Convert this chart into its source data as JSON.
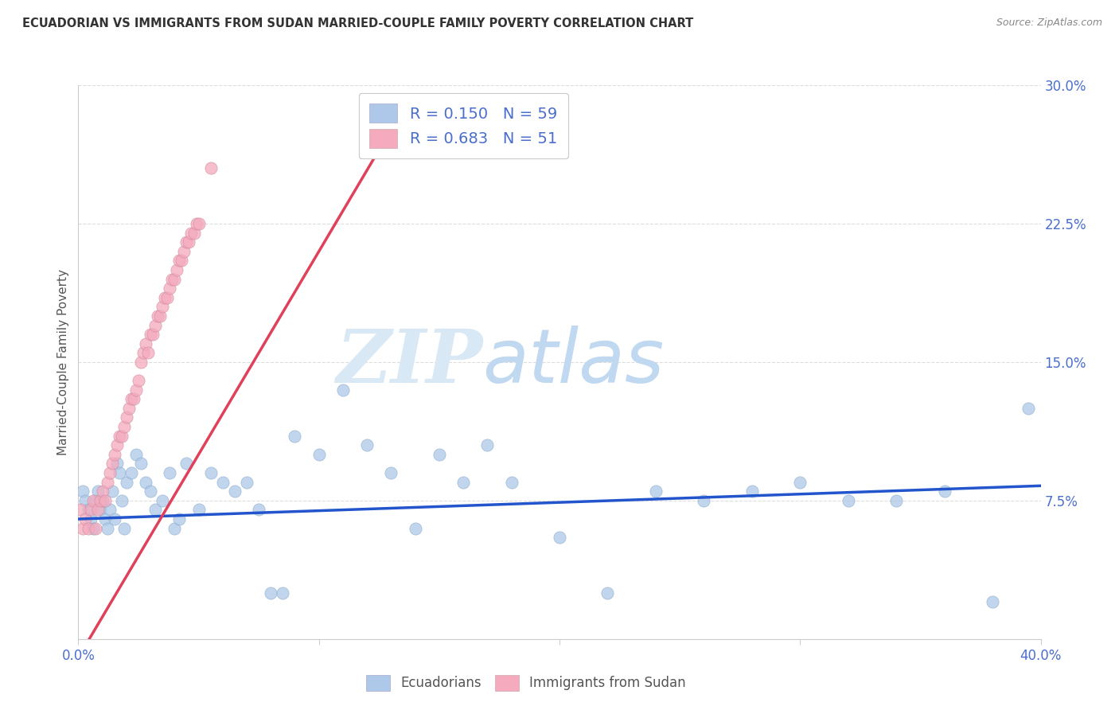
{
  "title": "ECUADORIAN VS IMMIGRANTS FROM SUDAN MARRIED-COUPLE FAMILY POVERTY CORRELATION CHART",
  "source": "Source: ZipAtlas.com",
  "ylabel": "Married-Couple Family Poverty",
  "x_min": 0.0,
  "x_max": 0.4,
  "y_min": 0.0,
  "y_max": 0.3,
  "R_blue": 0.15,
  "N_blue": 59,
  "R_pink": 0.683,
  "N_pink": 51,
  "color_blue": "#adc8e8",
  "color_pink": "#f5aabe",
  "line_color_blue": "#2255cc",
  "line_color_pink": "#e0405a",
  "watermark_zip": "ZIP",
  "watermark_atlas": "atlas",
  "watermark_color_zip": "#d8e8f4",
  "watermark_color_atlas": "#c0d8f0",
  "blue_intercept": 0.065,
  "blue_slope": 0.045,
  "pink_intercept": -0.01,
  "pink_slope": 2.2,
  "ecuadorians_x": [
    0.002,
    0.003,
    0.004,
    0.005,
    0.006,
    0.007,
    0.008,
    0.009,
    0.01,
    0.011,
    0.012,
    0.013,
    0.014,
    0.015,
    0.016,
    0.017,
    0.018,
    0.019,
    0.02,
    0.022,
    0.024,
    0.026,
    0.028,
    0.03,
    0.032,
    0.035,
    0.038,
    0.04,
    0.042,
    0.045,
    0.05,
    0.055,
    0.06,
    0.065,
    0.07,
    0.075,
    0.08,
    0.085,
    0.09,
    0.1,
    0.11,
    0.12,
    0.13,
    0.14,
    0.15,
    0.16,
    0.17,
    0.18,
    0.2,
    0.22,
    0.24,
    0.26,
    0.28,
    0.3,
    0.32,
    0.34,
    0.36,
    0.38,
    0.395
  ],
  "ecuadorians_y": [
    0.08,
    0.075,
    0.07,
    0.065,
    0.06,
    0.075,
    0.08,
    0.07,
    0.075,
    0.065,
    0.06,
    0.07,
    0.08,
    0.065,
    0.095,
    0.09,
    0.075,
    0.06,
    0.085,
    0.09,
    0.1,
    0.095,
    0.085,
    0.08,
    0.07,
    0.075,
    0.09,
    0.06,
    0.065,
    0.095,
    0.07,
    0.09,
    0.085,
    0.08,
    0.085,
    0.07,
    0.025,
    0.025,
    0.11,
    0.1,
    0.135,
    0.105,
    0.09,
    0.06,
    0.1,
    0.085,
    0.105,
    0.085,
    0.055,
    0.025,
    0.08,
    0.075,
    0.08,
    0.085,
    0.075,
    0.075,
    0.08,
    0.02,
    0.125
  ],
  "sudan_x": [
    0.001,
    0.002,
    0.003,
    0.004,
    0.005,
    0.006,
    0.007,
    0.008,
    0.009,
    0.01,
    0.011,
    0.012,
    0.013,
    0.014,
    0.015,
    0.016,
    0.017,
    0.018,
    0.019,
    0.02,
    0.021,
    0.022,
    0.023,
    0.024,
    0.025,
    0.026,
    0.027,
    0.028,
    0.029,
    0.03,
    0.031,
    0.032,
    0.033,
    0.034,
    0.035,
    0.036,
    0.037,
    0.038,
    0.039,
    0.04,
    0.041,
    0.042,
    0.043,
    0.044,
    0.045,
    0.046,
    0.047,
    0.048,
    0.049,
    0.05,
    0.055
  ],
  "sudan_y": [
    0.07,
    0.06,
    0.065,
    0.06,
    0.07,
    0.075,
    0.06,
    0.07,
    0.075,
    0.08,
    0.075,
    0.085,
    0.09,
    0.095,
    0.1,
    0.105,
    0.11,
    0.11,
    0.115,
    0.12,
    0.125,
    0.13,
    0.13,
    0.135,
    0.14,
    0.15,
    0.155,
    0.16,
    0.155,
    0.165,
    0.165,
    0.17,
    0.175,
    0.175,
    0.18,
    0.185,
    0.185,
    0.19,
    0.195,
    0.195,
    0.2,
    0.205,
    0.205,
    0.21,
    0.215,
    0.215,
    0.22,
    0.22,
    0.225,
    0.225,
    0.255
  ]
}
